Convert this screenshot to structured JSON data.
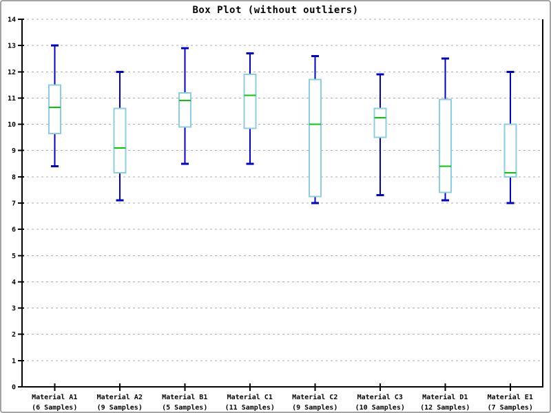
{
  "figure": {
    "background": "#FFFFFF",
    "border_color": "#A3A3A3"
  },
  "chart_data": {
    "type": "box",
    "title": "Box Plot (without outliers)",
    "xlabel": "",
    "ylabel": "",
    "ylim": [
      0,
      14
    ],
    "yticks": [
      0,
      1,
      2,
      3,
      4,
      5,
      6,
      7,
      8,
      9,
      10,
      11,
      12,
      13,
      14
    ],
    "grid": "horizontal-dashed",
    "legend": "none",
    "boxes": [
      {
        "category": "Material A1",
        "samples_label": "(6 Samples)",
        "whisker_low": 8.4,
        "q1": 9.65,
        "median": 10.65,
        "q3": 11.5,
        "whisker_high": 13.0
      },
      {
        "category": "Material A2",
        "samples_label": "(9 Samples)",
        "whisker_low": 7.1,
        "q1": 8.15,
        "median": 9.1,
        "q3": 10.6,
        "whisker_high": 12.0
      },
      {
        "category": "Material B1",
        "samples_label": "(5 Samples)",
        "whisker_low": 8.5,
        "q1": 9.9,
        "median": 10.9,
        "q3": 11.2,
        "whisker_high": 12.9
      },
      {
        "category": "Material C1",
        "samples_label": "(11 Samples)",
        "whisker_low": 8.5,
        "q1": 9.85,
        "median": 11.1,
        "q3": 11.9,
        "whisker_high": 12.7
      },
      {
        "category": "Material C2",
        "samples_label": "(9 Samples)",
        "whisker_low": 7.0,
        "q1": 7.25,
        "median": 10.0,
        "q3": 11.7,
        "whisker_high": 12.6
      },
      {
        "category": "Material C3",
        "samples_label": "(10 Samples)",
        "whisker_low": 7.3,
        "q1": 9.5,
        "median": 10.25,
        "q3": 10.6,
        "whisker_high": 11.9
      },
      {
        "category": "Material D1",
        "samples_label": "(12 Samples)",
        "whisker_low": 7.1,
        "q1": 7.4,
        "median": 8.4,
        "q3": 10.95,
        "whisker_high": 12.5
      },
      {
        "category": "Material E1",
        "samples_label": "(7 Samples)",
        "whisker_low": 7.0,
        "q1": 8.0,
        "median": 8.15,
        "q3": 10.0,
        "whisker_high": 12.0
      }
    ],
    "colors": {
      "box_edge": "#8CCDE6",
      "box_fill": "#FFFFFF",
      "whisker": "#0000CC",
      "median": "#00CC00",
      "grid": "#ABABAB",
      "axis": "#000000",
      "background": "#FFFFFF"
    }
  }
}
